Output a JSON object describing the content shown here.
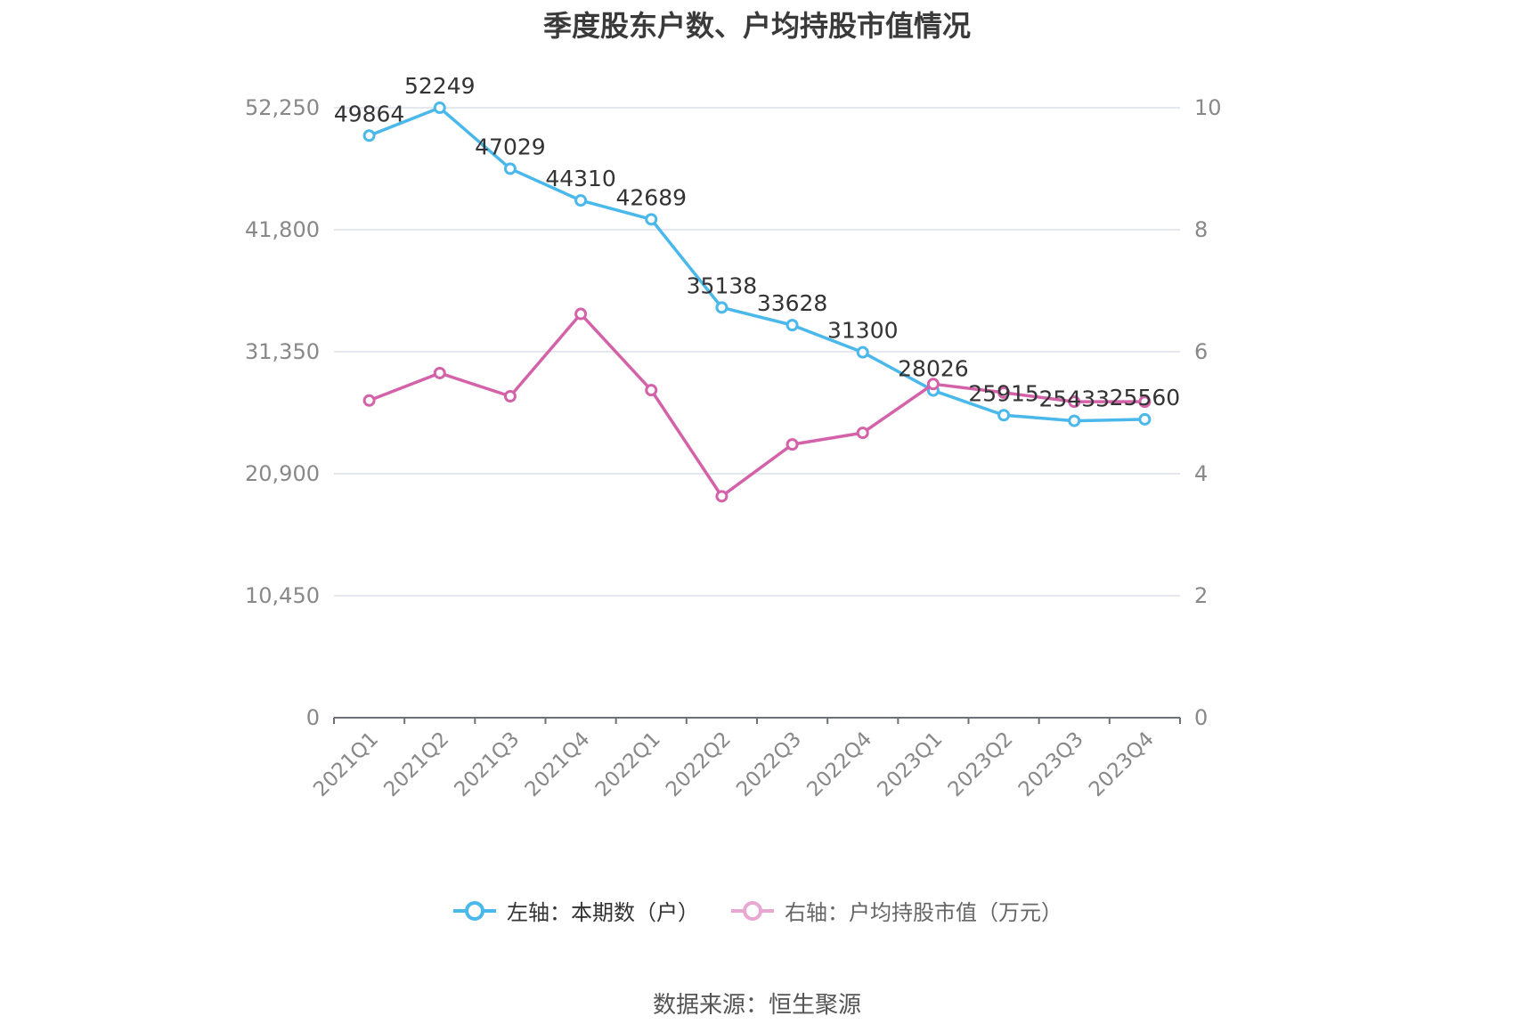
{
  "chart_data": {
    "type": "line",
    "title": "季度股东户数、户均持股市值情况",
    "categories": [
      "2021Q1",
      "2021Q2",
      "2021Q3",
      "2021Q4",
      "2022Q1",
      "2022Q2",
      "2022Q3",
      "2022Q4",
      "2023Q1",
      "2023Q2",
      "2023Q3",
      "2023Q4"
    ],
    "series": [
      {
        "name": "左轴：本期数（户）",
        "axis": "left",
        "color": "#4ab8ea",
        "values": [
          49864,
          52249,
          47029,
          44310,
          42689,
          35138,
          33628,
          31300,
          28026,
          25915,
          25433,
          25560
        ],
        "data_labels": [
          "49864",
          "52249",
          "47029",
          "44310",
          "42689",
          "35138",
          "33628",
          "31300",
          "28026",
          "25915",
          "25433",
          "25560"
        ]
      },
      {
        "name": "右轴：户均持股市值（万元）",
        "axis": "right",
        "color": "#d462a8",
        "values": [
          5.2,
          5.65,
          5.27,
          6.62,
          5.37,
          3.63,
          4.48,
          4.67,
          5.47,
          5.33,
          5.18,
          5.18
        ]
      }
    ],
    "y_left": {
      "ylim": [
        0,
        52250
      ],
      "ticks": [
        "0",
        "10,450",
        "20,900",
        "31,350",
        "41,800",
        "52,250"
      ],
      "tick_values": [
        0,
        10450,
        20900,
        31350,
        41800,
        52250
      ]
    },
    "y_right": {
      "ylim": [
        0,
        10
      ],
      "ticks": [
        "0",
        "2",
        "4",
        "6",
        "8",
        "10"
      ],
      "tick_values": [
        0,
        2,
        4,
        6,
        8,
        10
      ]
    },
    "grid": true,
    "legend_position": "bottom"
  },
  "legend": {
    "left_label": "左轴：本期数（户）",
    "right_label": "右轴：户均持股市值（万元）",
    "left_color": "#4ab8ea",
    "right_color": "#e8a8d2"
  },
  "source": "数据来源：恒生聚源"
}
